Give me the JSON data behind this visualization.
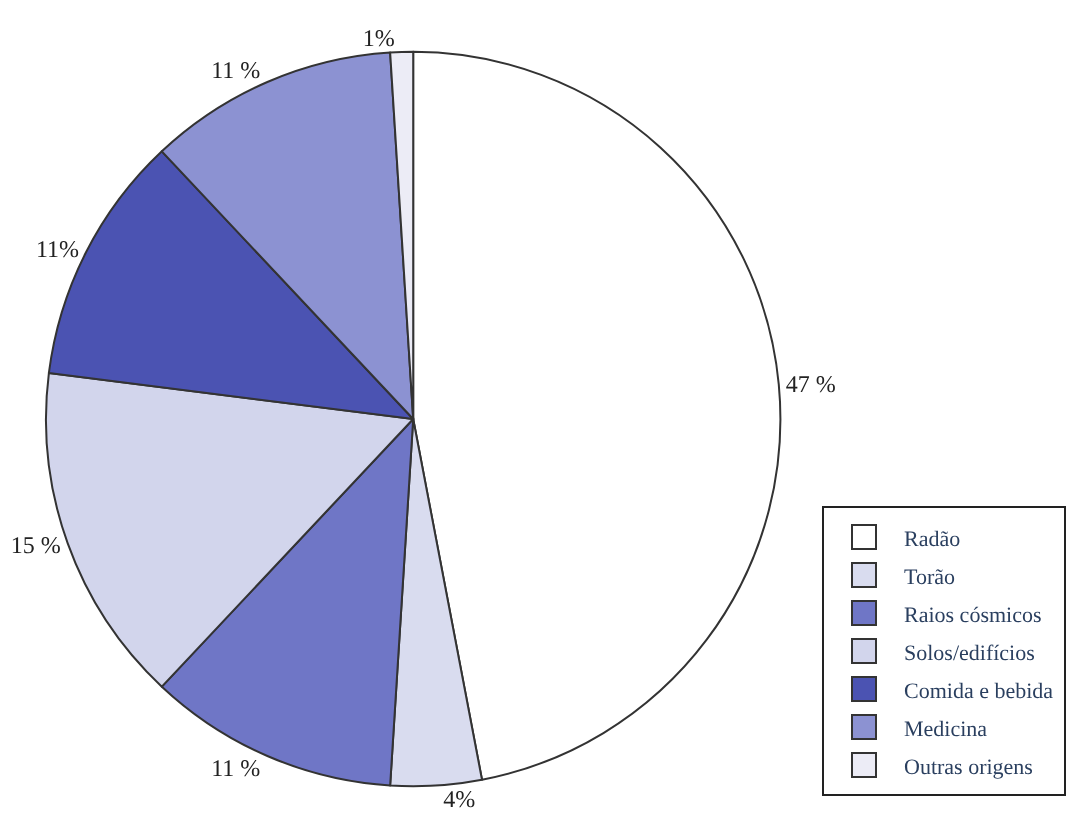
{
  "chart_data": {
    "type": "pie",
    "categories": [
      "Radão",
      "Torão",
      "Raios cósmicos",
      "Solos/edifícios",
      "Comida e bebida",
      "Medicina",
      "Outras origens"
    ],
    "values": [
      47,
      4,
      11,
      15,
      11,
      11,
      1
    ],
    "colors": [
      "#ffffff",
      "#d9dcef",
      "#6f76c6",
      "#d2d5ec",
      "#4b53b2",
      "#8c92d2",
      "#ececf6"
    ],
    "value_labels": [
      "47 %",
      "4%",
      "11 %",
      "15 %",
      "11%",
      "11 %",
      "1%"
    ],
    "legend": "bottom right"
  }
}
